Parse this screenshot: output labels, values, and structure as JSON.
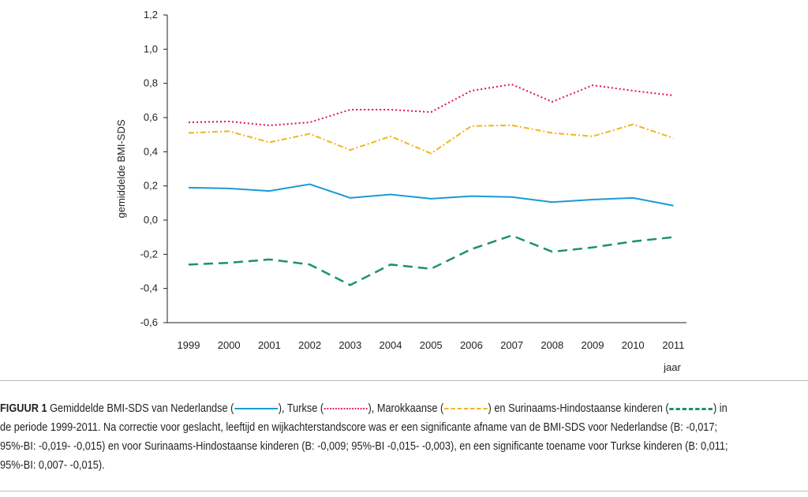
{
  "chart_data": {
    "type": "line",
    "title": "",
    "xlabel": "jaar",
    "ylabel": "gemiddelde BMI-SDS",
    "ylim": [
      -0.6,
      1.2
    ],
    "yticks": [
      "-0,6",
      "-0,4",
      "-0,2",
      "0,0",
      "0,2",
      "0,4",
      "0,6",
      "0,8",
      "1,0",
      "1,2"
    ],
    "ytick_values": [
      -0.6,
      -0.4,
      -0.2,
      0,
      0.2,
      0.4,
      0.6,
      0.8,
      1.0,
      1.2
    ],
    "categories": [
      "1999",
      "2000",
      "2001",
      "2002",
      "2003",
      "2004",
      "2005",
      "2006",
      "2007",
      "2008",
      "2009",
      "2010",
      "2011"
    ],
    "grid": false,
    "series": [
      {
        "key": "nederlandse",
        "style": "solid",
        "color": "#1a9ad6",
        "values": [
          0.19,
          0.185,
          0.17,
          0.21,
          0.13,
          0.15,
          0.125,
          0.14,
          0.135,
          0.105,
          0.12,
          0.13,
          0.085
        ]
      },
      {
        "key": "turkse",
        "style": "dotted",
        "color": "#e0124a",
        "values": [
          0.572,
          0.577,
          0.554,
          0.572,
          0.646,
          0.646,
          0.632,
          0.757,
          0.794,
          0.692,
          0.789,
          0.757,
          0.729
        ]
      },
      {
        "key": "marokkaanse",
        "style": "dashdot",
        "color": "#f2b51c",
        "values": [
          0.51,
          0.52,
          0.455,
          0.505,
          0.41,
          0.49,
          0.39,
          0.55,
          0.555,
          0.51,
          0.49,
          0.56,
          0.48
        ]
      },
      {
        "key": "surinaams",
        "style": "dashed",
        "color": "#1c9460",
        "values": [
          -0.26,
          -0.25,
          -0.23,
          -0.26,
          -0.38,
          -0.26,
          -0.285,
          -0.17,
          -0.09,
          -0.185,
          -0.16,
          -0.125,
          -0.1
        ]
      }
    ]
  },
  "caption": {
    "label": "FIGUUR 1",
    "t1": "Gemiddelde BMI-SDS van Nederlandse (",
    "t2": "), Turkse (",
    "t3": "), Marokkaanse (",
    "t4": ") en Surinaams-Hindostaanse kinderen (",
    "t5": ") in",
    "line2": "de periode 1999-2011. Na correctie voor geslacht, leeftijd en wijkachterstandscore was er een significante afname van de BMI-SDS voor Nederlandse (B: -0,017;",
    "line3": "95%-BI: -0,019- -0,015) en voor Surinaams-Hindostaanse kinderen (B: -0,009; 95%-BI -0,015- -0,003), en een significante toename voor Turkse kinderen (B: 0,011;",
    "line4": "95%-BI: 0,007- -0,015)."
  }
}
